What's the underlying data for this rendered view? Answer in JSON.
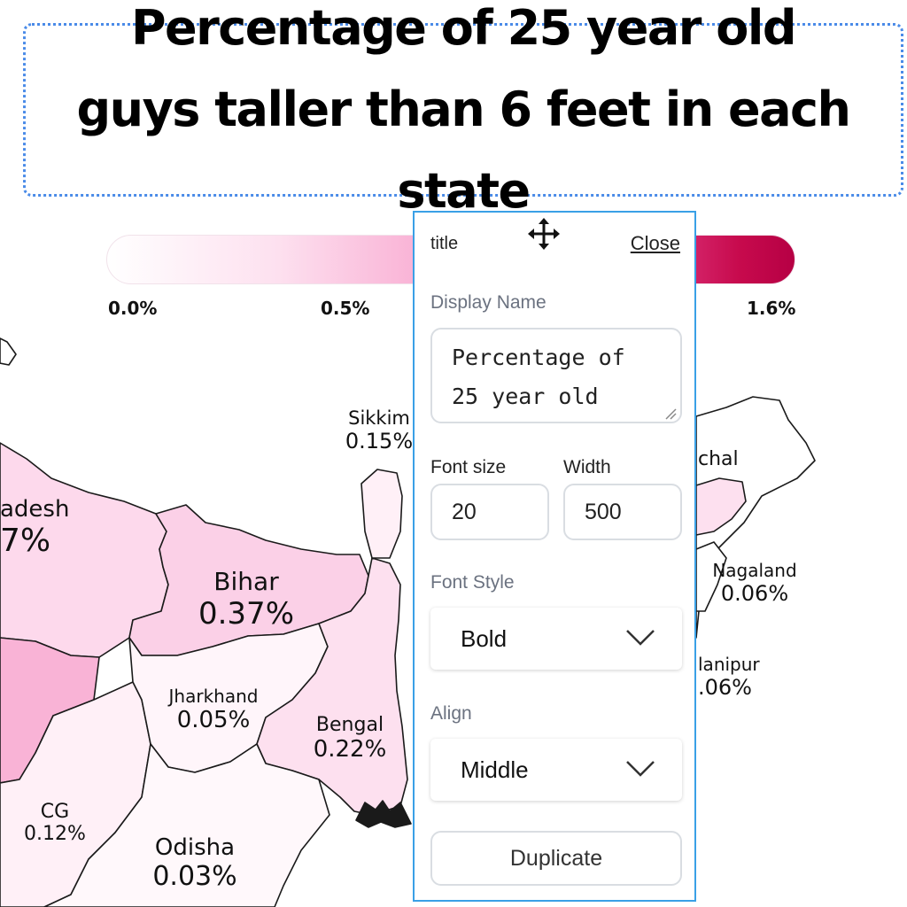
{
  "title": {
    "text": "Percentage of 25 year old guys taller than 6 feet in each state"
  },
  "legend": {
    "ticks": [
      "0.0%",
      "0.5%",
      "1.6%"
    ],
    "gradient_colors": [
      "#ffffff",
      "#fde0ef",
      "#f9b3d6",
      "#e5468e",
      "#c70a4d",
      "#b60044"
    ]
  },
  "map": {
    "regions": [
      {
        "name": "adesh",
        "value": "7%",
        "fill": "#fdd9ec"
      },
      {
        "name": "Bihar",
        "value": "0.37%",
        "fill": "#fbd0e7"
      },
      {
        "name": "Jharkhand",
        "value": "0.05%",
        "fill": "#fff5fa"
      },
      {
        "name": "Bengal",
        "value": "0.22%",
        "fill": "#fde0ef"
      },
      {
        "name": "CG",
        "value": "0.12%",
        "fill": "#fff0f7"
      },
      {
        "name": "Odisha",
        "value": "0.03%",
        "fill": "#fff8fb"
      },
      {
        "name": "Sikkim",
        "value": "0.15%",
        "fill": "#fff0f7"
      },
      {
        "name": "chal",
        "value": "",
        "fill": "#fff5fa"
      },
      {
        "name": "Nagaland",
        "value": "0.06%",
        "fill": "#fff5fa"
      },
      {
        "name": "lanipur",
        "value": ".06%",
        "fill": "#fff5fa"
      }
    ],
    "highlight_fill": "#f9b3d6",
    "border_color": "#1a1a1a"
  },
  "panel": {
    "header": "title",
    "close_label": "Close",
    "display_name_label": "Display Name",
    "display_name_value": "Percentage of 25 year old",
    "font_size_label": "Font size",
    "font_size_value": "20",
    "width_label": "Width",
    "width_value": "500",
    "font_style_label": "Font Style",
    "font_style_value": "Bold",
    "align_label": "Align",
    "align_value": "Middle",
    "duplicate_label": "Duplicate",
    "border_color": "#3aa0e6"
  }
}
